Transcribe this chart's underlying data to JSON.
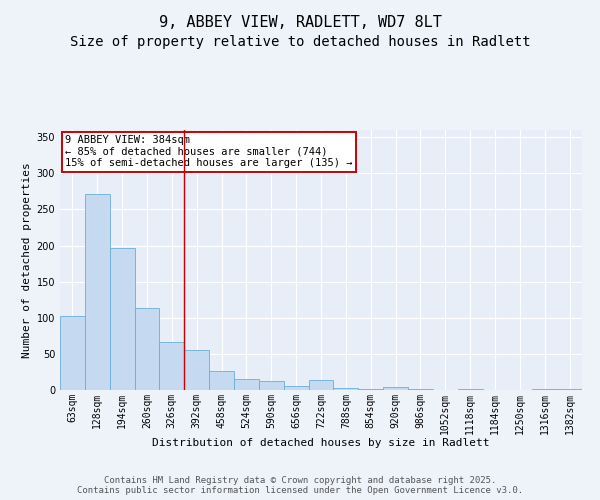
{
  "title": "9, ABBEY VIEW, RADLETT, WD7 8LT",
  "subtitle": "Size of property relative to detached houses in Radlett",
  "xlabel": "Distribution of detached houses by size in Radlett",
  "ylabel": "Number of detached properties",
  "categories": [
    "63sqm",
    "128sqm",
    "194sqm",
    "260sqm",
    "326sqm",
    "392sqm",
    "458sqm",
    "524sqm",
    "590sqm",
    "656sqm",
    "722sqm",
    "788sqm",
    "854sqm",
    "920sqm",
    "986sqm",
    "1052sqm",
    "1118sqm",
    "1184sqm",
    "1250sqm",
    "1316sqm",
    "1382sqm"
  ],
  "values": [
    103,
    271,
    197,
    113,
    67,
    55,
    26,
    15,
    12,
    5,
    14,
    3,
    2,
    4,
    1,
    0,
    1,
    0,
    0,
    2,
    1
  ],
  "bar_color": "#c5d9f0",
  "bar_edge_color": "#6baed6",
  "vline_color": "#cc0000",
  "vline_index": 5,
  "annotation_text": "9 ABBEY VIEW: 384sqm\n← 85% of detached houses are smaller (744)\n15% of semi-detached houses are larger (135) →",
  "annotation_box_facecolor": "#ffffff",
  "annotation_box_edgecolor": "#cc0000",
  "ylim": [
    0,
    360
  ],
  "yticks": [
    0,
    50,
    100,
    150,
    200,
    250,
    300,
    350
  ],
  "bg_color": "#eef2f9",
  "plot_bg_color": "#e8eef8",
  "grid_color": "#ffffff",
  "title_fontsize": 11,
  "subtitle_fontsize": 10,
  "axis_fontsize": 8,
  "tick_fontsize": 7,
  "footer_text": "Contains HM Land Registry data © Crown copyright and database right 2025.\nContains public sector information licensed under the Open Government Licence v3.0.",
  "footer_fontsize": 6.5
}
